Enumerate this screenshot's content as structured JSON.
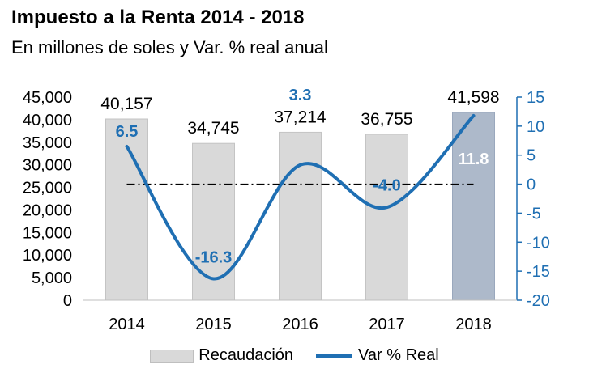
{
  "title": "Impuesto a la Renta 2014 - 2018",
  "subtitle": "En millones de soles y Var. % real anual",
  "chart_data": {
    "type": "bar",
    "categories": [
      "2014",
      "2015",
      "2016",
      "2017",
      "2018"
    ],
    "series": [
      {
        "name": "Recaudación",
        "type": "bar",
        "axis": "left",
        "values": [
          40157,
          34745,
          37214,
          36755,
          41598
        ],
        "labels": [
          "40,157",
          "34,745",
          "37,214",
          "36,755",
          "41,598"
        ]
      },
      {
        "name": "Var % Real",
        "type": "line",
        "axis": "right",
        "values": [
          6.5,
          -16.3,
          3.3,
          -4.0,
          11.8
        ],
        "labels": [
          "6.5",
          "-16.3",
          "3.3",
          "-4.0",
          "11.8"
        ]
      }
    ],
    "y_left": {
      "min": 0,
      "max": 45000,
      "ticks": [
        "0",
        "5,000",
        "10,000",
        "15,000",
        "20,000",
        "25,000",
        "30,000",
        "35,000",
        "40,000",
        "45,000"
      ]
    },
    "y_right": {
      "min": -20,
      "max": 15,
      "ticks": [
        "-20",
        "-15",
        "-10",
        "-5",
        "0",
        "5",
        "10",
        "15"
      ]
    },
    "reference_line": {
      "axis": "right",
      "value": 0,
      "style": "dash-dot"
    },
    "legend": {
      "placement": "bottom",
      "items": [
        "Recaudación",
        "Var % Real"
      ]
    },
    "colors": {
      "bar": "#d9d9d9",
      "bar_highlight": "#adb9ca",
      "line": "#1f6fb3",
      "right_axis": "#1f6fb3"
    }
  }
}
